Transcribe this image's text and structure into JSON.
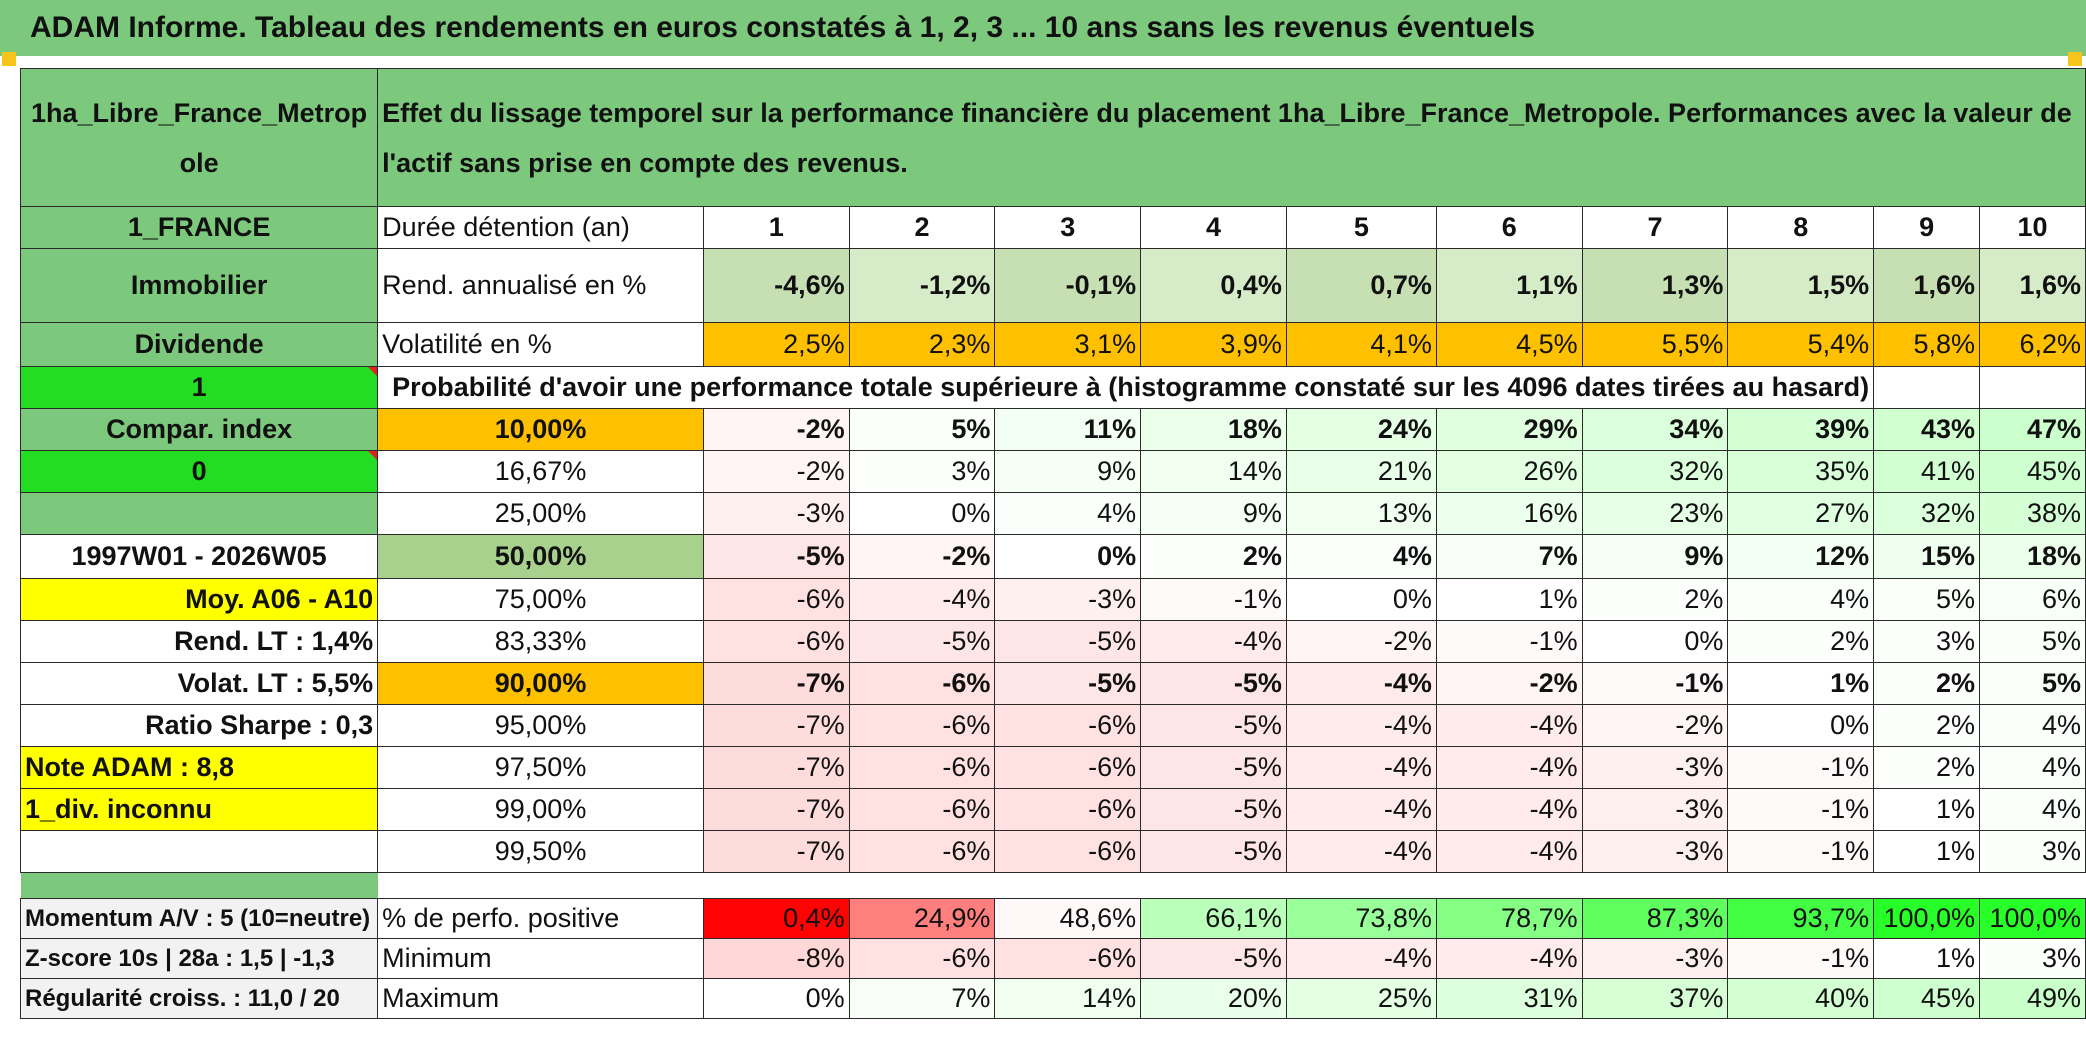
{
  "title": "ADAM Informe. Tableau des rendements en euros constatés à 1, 2, 3 ... 10 ans sans les revenus éventuels",
  "header": {
    "asset_name": "1ha_Libre_France_Metropole",
    "description": "Effet du lissage temporel sur la performance financière du placement 1ha_Libre_France_Metropole. Performances avec la valeur de l'actif sans prise en compte des revenus."
  },
  "sidebar": {
    "country": "1_FRANCE",
    "category": "Immobilier",
    "income_type": "Dividende",
    "selector_1": "1",
    "compar_index": "Compar. index",
    "selector_0": "0",
    "period": "1997W01 - 2026W05",
    "moy_label": "Moy. A06 - A10",
    "rend_lt": "Rend. LT :   1,4%",
    "volat_lt": "Volat. LT :   5,5%",
    "ratio_sharpe": "Ratio Sharpe :    0,3",
    "note_adam": "Note ADAM : 8,8",
    "div_status": "1_div. inconnu",
    "momentum": "Momentum A/V : 5 (10=neutre)",
    "zscore": "Z-score 10s | 28a : 1,5 | -1,3",
    "regularite": "Régularité croiss. : 11,0 / 20"
  },
  "labels": {
    "duration": "Durée détention (an)",
    "rend": "Rend. annualisé en %",
    "volat": "Volatilité en %",
    "prob": "Probabilité d'avoir une performance totale supérieure à (histogramme constaté sur les 4096 dates tirées au hasard)",
    "positive": "% de perfo. positive",
    "minimum": "Minimum",
    "maximum": "Maximum"
  },
  "durations": [
    "1",
    "2",
    "3",
    "4",
    "5",
    "6",
    "7",
    "8",
    "9",
    "10"
  ],
  "rend": [
    "-4,6%",
    "-1,2%",
    "-0,1%",
    "0,4%",
    "0,7%",
    "1,1%",
    "1,3%",
    "1,5%",
    "1,6%",
    "1,6%"
  ],
  "volat": [
    "2,5%",
    "2,3%",
    "3,1%",
    "3,9%",
    "4,1%",
    "4,5%",
    "5,5%",
    "5,4%",
    "5,8%",
    "6,2%"
  ],
  "percentiles": [
    {
      "level": "10,00%",
      "values": [
        "-2%",
        "5%",
        "11%",
        "18%",
        "24%",
        "29%",
        "34%",
        "39%",
        "43%",
        "47%"
      ]
    },
    {
      "level": "16,67%",
      "values": [
        "-2%",
        "3%",
        "9%",
        "14%",
        "21%",
        "26%",
        "32%",
        "35%",
        "41%",
        "45%"
      ]
    },
    {
      "level": "25,00%",
      "values": [
        "-3%",
        "0%",
        "4%",
        "9%",
        "13%",
        "16%",
        "23%",
        "27%",
        "32%",
        "38%"
      ]
    },
    {
      "level": "50,00%",
      "values": [
        "-5%",
        "-2%",
        "0%",
        "2%",
        "4%",
        "7%",
        "9%",
        "12%",
        "15%",
        "18%"
      ]
    },
    {
      "level": "75,00%",
      "values": [
        "-6%",
        "-4%",
        "-3%",
        "-1%",
        "0%",
        "1%",
        "2%",
        "4%",
        "5%",
        "6%"
      ]
    },
    {
      "level": "83,33%",
      "values": [
        "-6%",
        "-5%",
        "-5%",
        "-4%",
        "-2%",
        "-1%",
        "0%",
        "2%",
        "3%",
        "5%"
      ]
    },
    {
      "level": "90,00%",
      "values": [
        "-7%",
        "-6%",
        "-5%",
        "-5%",
        "-4%",
        "-2%",
        "-1%",
        "1%",
        "2%",
        "5%"
      ]
    },
    {
      "level": "95,00%",
      "values": [
        "-7%",
        "-6%",
        "-6%",
        "-5%",
        "-4%",
        "-4%",
        "-2%",
        "0%",
        "2%",
        "4%"
      ]
    },
    {
      "level": "97,50%",
      "values": [
        "-7%",
        "-6%",
        "-6%",
        "-5%",
        "-4%",
        "-4%",
        "-3%",
        "-1%",
        "2%",
        "4%"
      ]
    },
    {
      "level": "99,00%",
      "values": [
        "-7%",
        "-6%",
        "-6%",
        "-5%",
        "-4%",
        "-4%",
        "-3%",
        "-1%",
        "1%",
        "4%"
      ]
    },
    {
      "level": "99,50%",
      "values": [
        "-7%",
        "-6%",
        "-6%",
        "-5%",
        "-4%",
        "-4%",
        "-3%",
        "-1%",
        "1%",
        "3%"
      ]
    }
  ],
  "positive": [
    "0,4%",
    "24,9%",
    "48,6%",
    "66,1%",
    "73,8%",
    "78,7%",
    "87,3%",
    "93,7%",
    "100,0%",
    "100,0%"
  ],
  "minimum": [
    "-8%",
    "-6%",
    "-6%",
    "-5%",
    "-4%",
    "-4%",
    "-3%",
    "-1%",
    "1%",
    "3%"
  ],
  "maximum": [
    "0%",
    "7%",
    "14%",
    "20%",
    "25%",
    "31%",
    "37%",
    "40%",
    "45%",
    "49%"
  ],
  "colors": {
    "header_green": "#7cc87c",
    "light_green": "#c6e0b4",
    "lime": "#22dd22",
    "yellow": "#ffff00",
    "orange": "#ffc000",
    "negative_red": "#e01010"
  }
}
